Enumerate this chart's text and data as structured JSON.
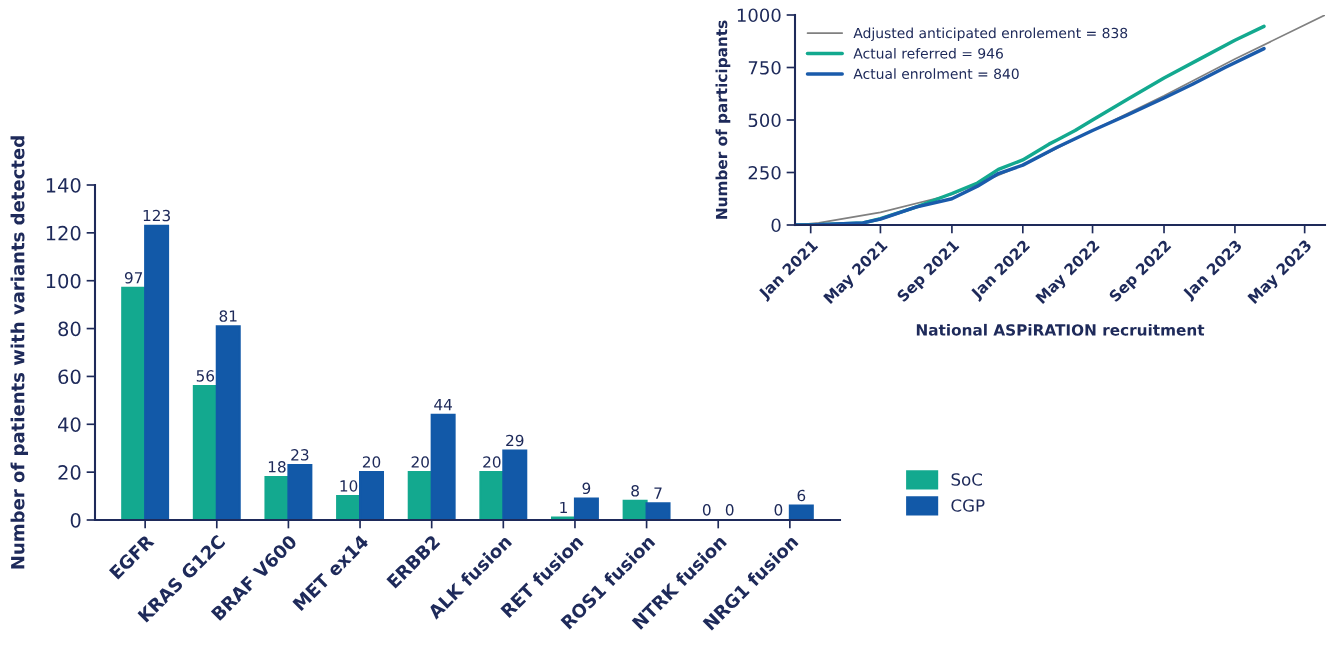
{
  "chart_data": [
    {
      "type": "bar",
      "ylabel": "Number of patients with variants detected",
      "categories": [
        "EGFR",
        "KRAS G12C",
        "BRAF V600",
        "MET ex14",
        "ERBB2",
        "ALK fusion",
        "RET fusion",
        "ROS1 fusion",
        "NTRK fusion",
        "NRG1 fusion"
      ],
      "series": [
        {
          "name": "SoC",
          "color": "#13a98f",
          "values": [
            97,
            56,
            18,
            10,
            20,
            20,
            1,
            8,
            0,
            0
          ]
        },
        {
          "name": "CGP",
          "color": "#1259a8",
          "values": [
            123,
            81,
            23,
            20,
            44,
            29,
            9,
            7,
            0,
            6
          ]
        }
      ],
      "ylim": [
        0,
        140
      ],
      "yticks": [
        0,
        20,
        40,
        60,
        80,
        100,
        120,
        140
      ],
      "data_labels": true,
      "legend": "right",
      "grid": false
    },
    {
      "type": "line",
      "xlabel": "National ASPiRATION recruitment",
      "ylabel": "Number of participants",
      "series": [
        {
          "name": "Adjusted anticipated enrolement = 838",
          "color": "#808080",
          "x": [
            "2020-12-05",
            "2021-01-15",
            "2021-05-01",
            "2021-09-01",
            "2022-01-01",
            "2022-05-01",
            "2022-09-01",
            "2023-01-01",
            "2023-06-05"
          ],
          "values": [
            0,
            10,
            60,
            145,
            285,
            450,
            615,
            790,
            1000
          ]
        },
        {
          "name": "Actual referred = 946",
          "color": "#13a98f",
          "x": [
            "2020-12-05",
            "2021-01-01",
            "2021-04-01",
            "2021-05-01",
            "2021-07-01",
            "2021-09-01",
            "2021-10-15",
            "2021-11-20",
            "2022-01-01",
            "2022-02-15",
            "2022-03-01",
            "2022-04-01",
            "2022-05-01",
            "2022-07-01",
            "2022-09-01",
            "2022-11-01",
            "2023-01-01",
            "2023-02-20"
          ],
          "values": [
            0,
            0,
            10,
            30,
            85,
            150,
            200,
            265,
            310,
            385,
            405,
            450,
            500,
            600,
            700,
            790,
            880,
            946
          ]
        },
        {
          "name": "Actual enrolment = 840",
          "color": "#1a5bab",
          "x": [
            "2020-12-05",
            "2021-01-01",
            "2021-04-01",
            "2021-05-01",
            "2021-07-01",
            "2021-09-01",
            "2021-10-15",
            "2021-11-20",
            "2022-01-01",
            "2022-03-01",
            "2022-05-01",
            "2022-07-01",
            "2022-09-01",
            "2022-10-20",
            "2022-12-15",
            "2023-02-20"
          ],
          "values": [
            0,
            0,
            10,
            28,
            85,
            125,
            185,
            245,
            285,
            370,
            450,
            525,
            605,
            670,
            750,
            840
          ]
        }
      ],
      "xlim": [
        "2020-12-05",
        "2023-06-05"
      ],
      "xticks": [
        {
          "value": "2021-01-01",
          "label": "Jan 2021"
        },
        {
          "value": "2021-05-01",
          "label": "May 2021"
        },
        {
          "value": "2021-09-01",
          "label": "Sep 2021"
        },
        {
          "value": "2022-01-01",
          "label": "Jan 2022"
        },
        {
          "value": "2022-05-01",
          "label": "May 2022"
        },
        {
          "value": "2022-09-01",
          "label": "Sep 2022"
        },
        {
          "value": "2023-01-01",
          "label": "Jan 2023"
        },
        {
          "value": "2023-05-01",
          "label": "May 2023"
        }
      ],
      "ylim": [
        0,
        1000
      ],
      "yticks": [
        0,
        250,
        500,
        750,
        1000
      ],
      "legend": "top left",
      "grid": false
    }
  ]
}
